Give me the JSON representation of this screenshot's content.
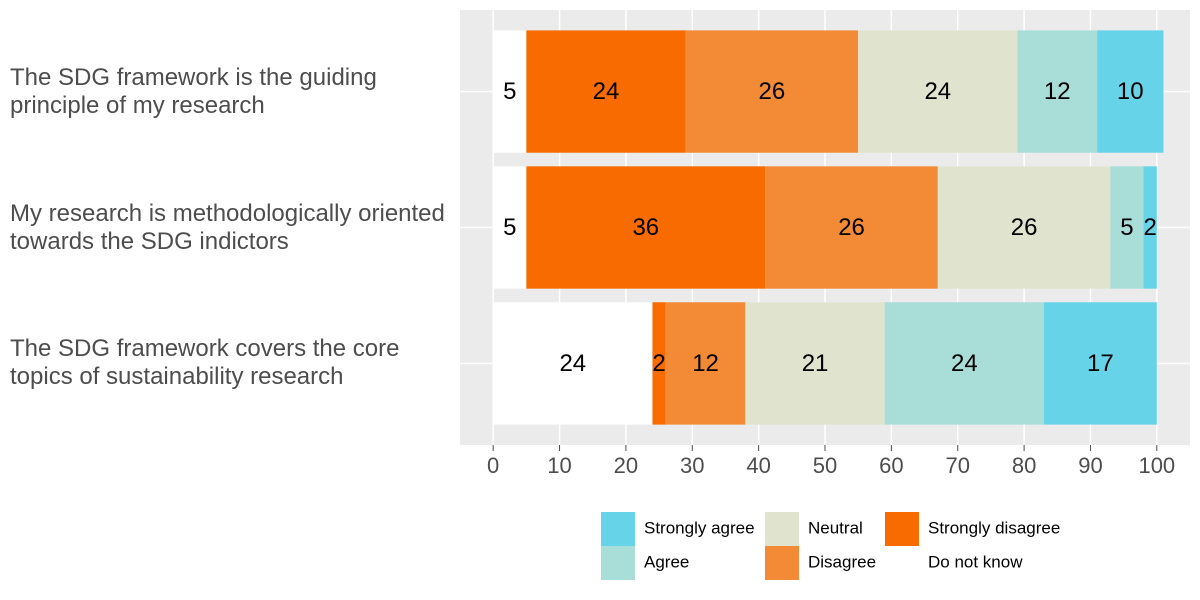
{
  "chart_data": {
    "type": "stacked-bar-horizontal",
    "categories": [
      "The SDG framework is the guiding principle of my research",
      "My research is methodologically oriented towards the SDG indictors",
      "The SDG framework covers the core topics of sustainability research"
    ],
    "series": [
      {
        "name": "Strongly agree",
        "color": "#67d3e8",
        "values": [
          10,
          2,
          17
        ]
      },
      {
        "name": "Agree",
        "color": "#a8ddd8",
        "values": [
          12,
          5,
          24
        ]
      },
      {
        "name": "Neutral",
        "color": "#e0e4cf",
        "values": [
          24,
          26,
          21
        ]
      },
      {
        "name": "Disagree",
        "color": "#f28a36",
        "values": [
          26,
          26,
          12
        ]
      },
      {
        "name": "Strongly disagree",
        "color": "#f76b00",
        "values": [
          24,
          36,
          2
        ]
      },
      {
        "name": "Do not know",
        "color": "#ffffff",
        "values": [
          5,
          5,
          24
        ]
      }
    ],
    "xlim": [
      -5,
      105
    ],
    "xticks": [
      0,
      10,
      20,
      30,
      40,
      50,
      60,
      70,
      80,
      90,
      100
    ],
    "grid": true
  }
}
